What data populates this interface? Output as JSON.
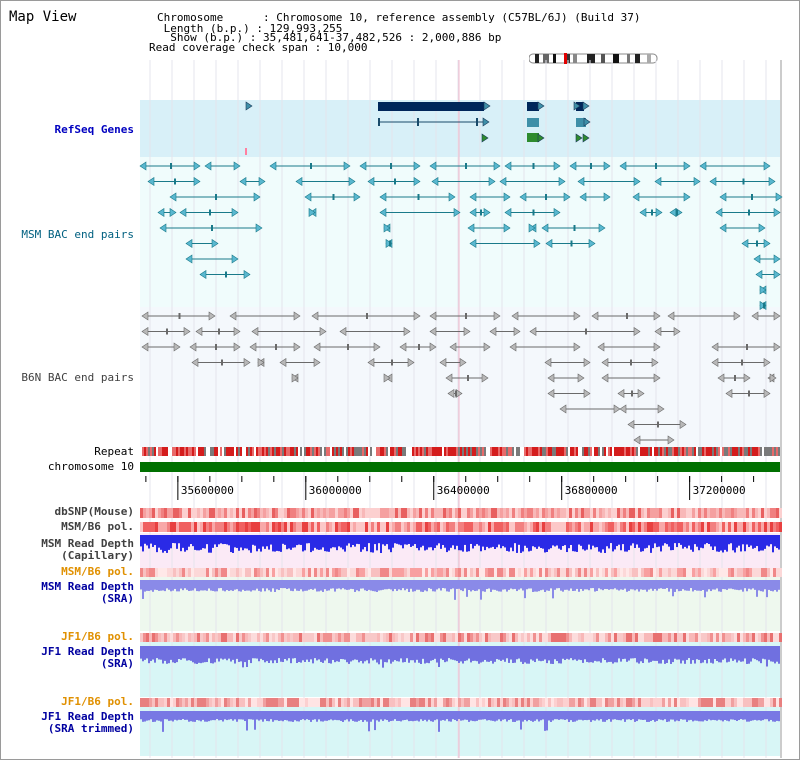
{
  "header": {
    "title": "Map View",
    "info_lines": [
      "Chromosome      : Chromosome 10, reference assembly (C57BL/6J) (Build 37)",
      " Length (b.p.) : 129,993,255",
      "  Show (b.p.) : 35,481,641-37,482,526 : 2,000,886 bp",
      "Read coverage check span : 10,000"
    ]
  },
  "colors": {
    "refseq_bg": "#d8f0f8",
    "bac_bg": "#f0fcfc",
    "b6n_bg": "#f4f8fc",
    "refseq_label": "#0000c0",
    "msm_bac_label": "#006080",
    "b6n_label": "#404040",
    "depth_label": "#0000a0",
    "pol_label": "#e09000",
    "chromosome": "#007000",
    "gene_dark": "#00265a",
    "gene_mid": "#3f8fa8",
    "gene_green": "#2e8b2e"
  },
  "tracks": {
    "refseq": "RefSeq Genes",
    "msm_bac": "MSM BAC end pairs",
    "b6n_bac": "B6N BAC end pairs",
    "repeat": "Repeat",
    "chromosome": "chromosome 10",
    "dbsnp": "dbSNP(Mouse)",
    "msm_pol": "MSM/B6 pol.",
    "msm_depth_cap": "MSM Read Depth\n(Capillary)",
    "msm_pol2": "MSM/B6 pol.",
    "msm_depth_sra": "MSM Read Depth\n(SRA)",
    "jf1_pol": "JF1/B6 pol.",
    "jf1_depth_sra": "JF1 Read Depth\n(SRA)",
    "jf1_pol2": "JF1/B6 pol.",
    "jf1_depth_trim": "JF1 Read Depth\n(SRA trimmed)"
  },
  "axis": {
    "ticks": [
      "35600000",
      "36000000",
      "36400000",
      "36800000",
      "37200000"
    ],
    "ticks_bp": [
      35600000,
      36000000,
      36400000,
      36800000,
      37200000
    ],
    "start_bp": 35481641,
    "end_bp": 37482526
  }
}
